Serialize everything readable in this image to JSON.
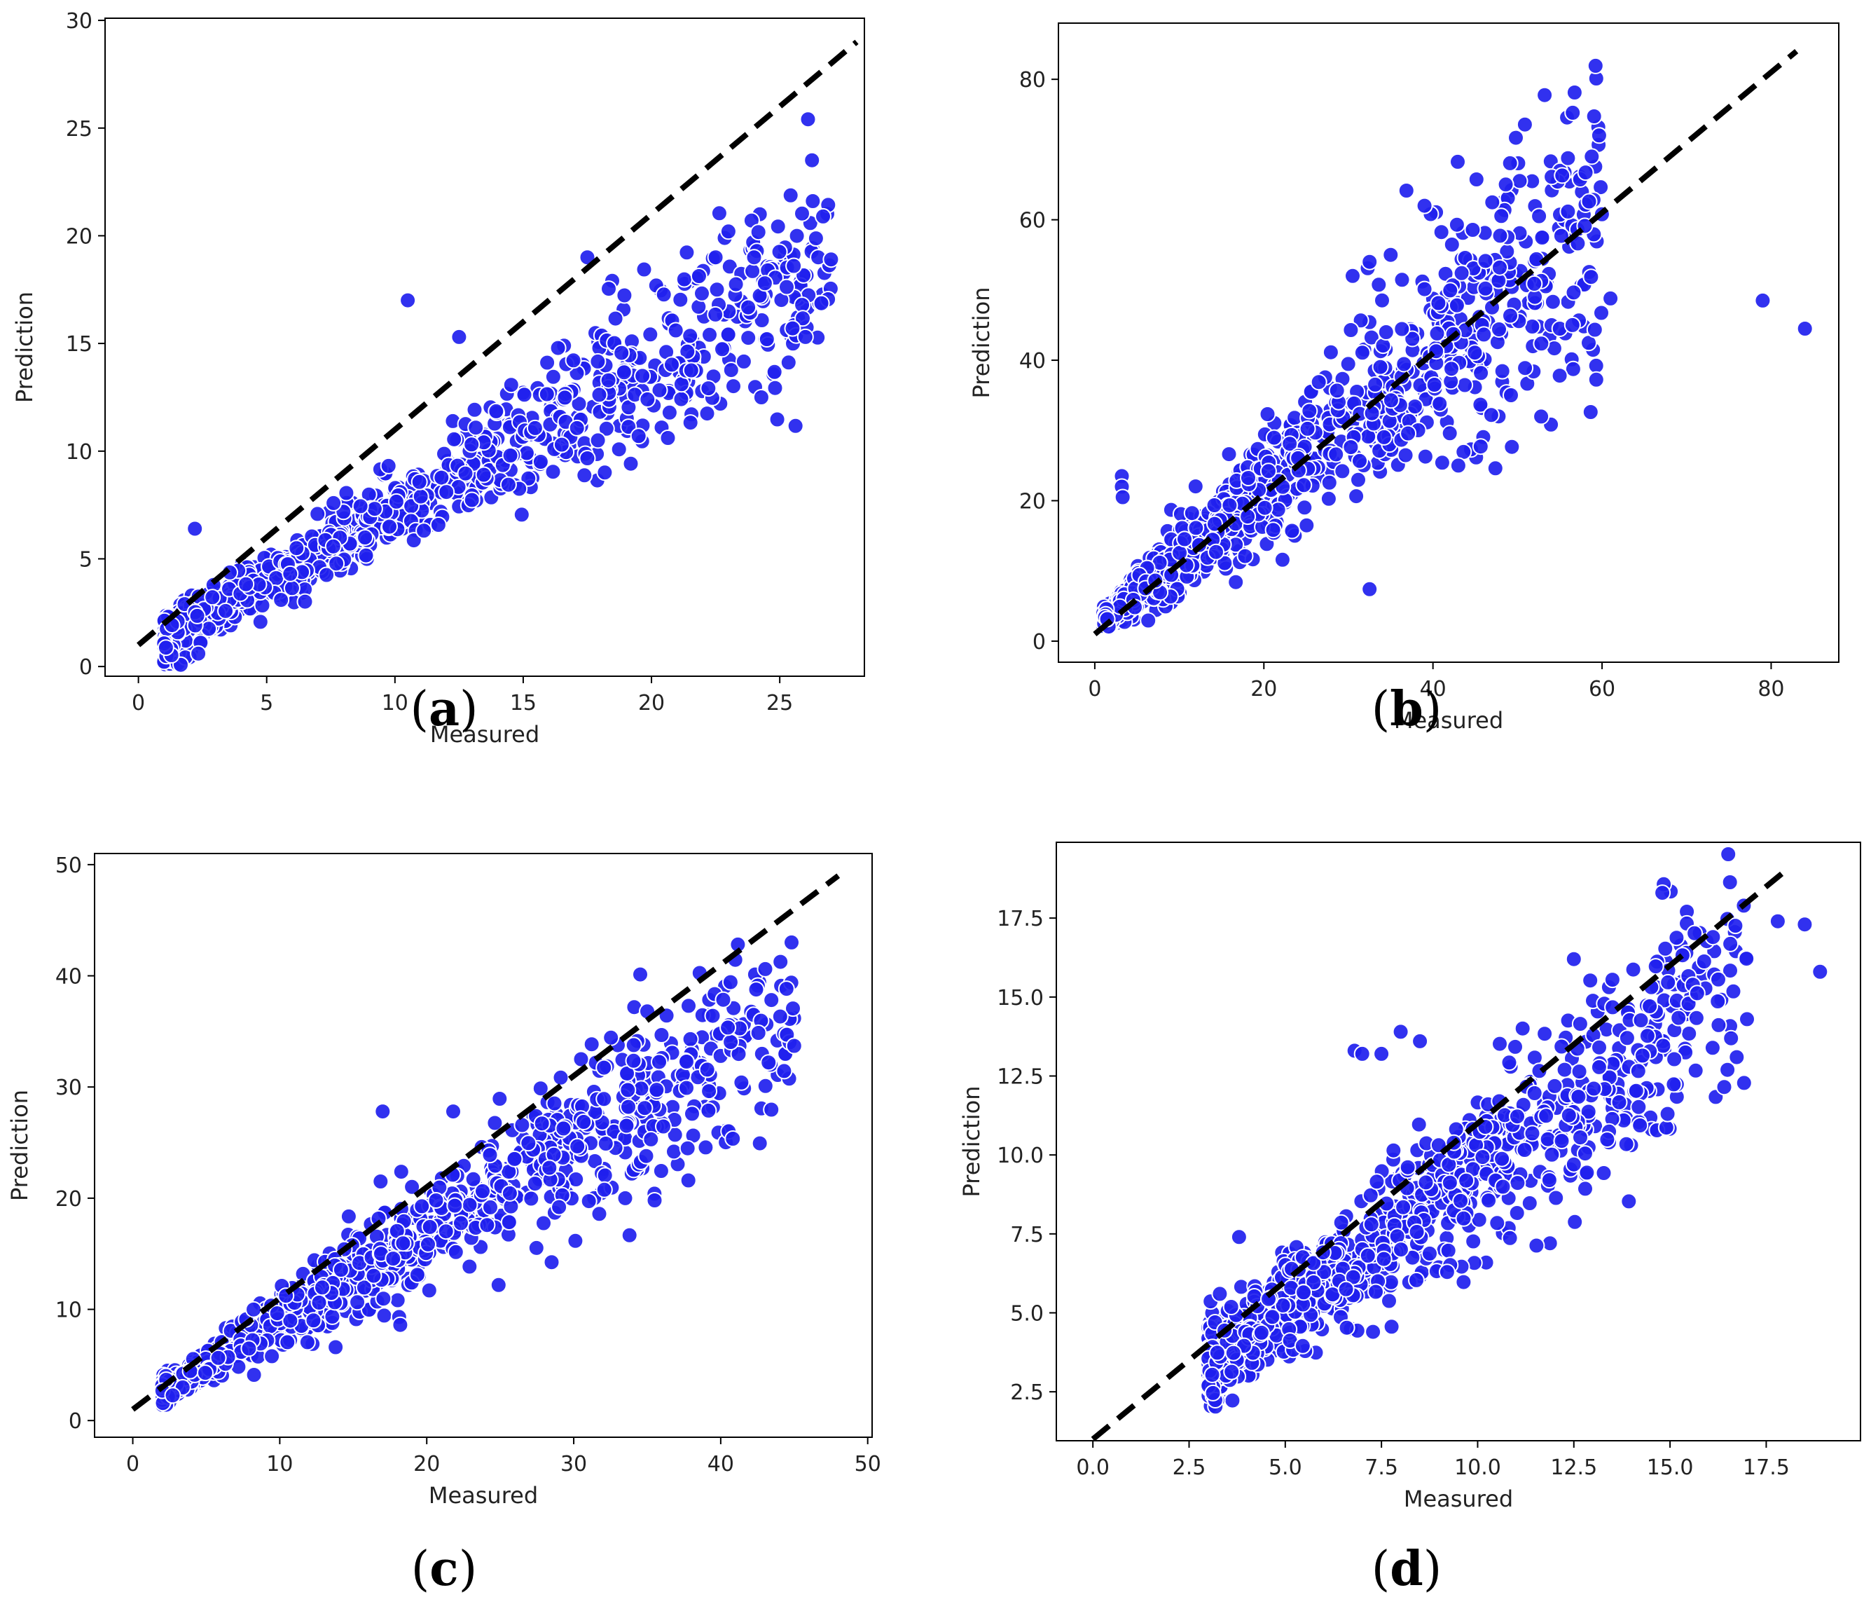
{
  "figure": {
    "colors": {
      "point": "#1f1fee",
      "point_edge": "#ffffff",
      "line": "#000000",
      "frame": "#000000"
    }
  },
  "chart_data": [
    {
      "type": "scatter",
      "panel_caption": "a",
      "title": "",
      "xlabel": "Measured",
      "ylabel": "Prediction",
      "xlim": [
        -1.3,
        28.3
      ],
      "ylim": [
        -0.45,
        30.1
      ],
      "xticks": [
        0,
        5,
        10,
        15,
        20,
        25
      ],
      "xtick_labels": [
        "0",
        "5",
        "10",
        "15",
        "20",
        "25"
      ],
      "yticks": [
        0,
        5,
        10,
        15,
        20,
        25,
        30
      ],
      "ytick_labels": [
        "0",
        "5",
        "10",
        "15",
        "20",
        "25",
        "30"
      ],
      "reference_line": {
        "style": "dashed",
        "x": [
          0,
          28
        ],
        "y": [
          1,
          29
        ]
      },
      "cloud": {
        "x_min": 1,
        "x_max": 27,
        "slope": 0.68,
        "intercept": 0.5,
        "spread": 0.14
      },
      "points": [
        [
          10.5,
          17
        ],
        [
          19.5,
          10.7
        ],
        [
          2.2,
          6.4
        ],
        [
          23,
          20.2
        ],
        [
          22.5,
          19
        ],
        [
          24,
          19
        ],
        [
          26.5,
          19
        ],
        [
          27,
          18.9
        ],
        [
          24.5,
          15.2
        ],
        [
          26,
          15.3
        ],
        [
          25.5,
          15.7
        ],
        [
          17.5,
          19
        ],
        [
          14.5,
          9.8
        ],
        [
          16.5,
          10.3
        ],
        [
          12.5,
          15.3
        ]
      ]
    },
    {
      "type": "scatter",
      "panel_caption": "b",
      "title": "",
      "xlabel": "Measured",
      "ylabel": "Prediction",
      "xlim": [
        -4.3,
        88
      ],
      "ylim": [
        -3,
        88
      ],
      "xticks": [
        0,
        20,
        40,
        60,
        80
      ],
      "xtick_labels": [
        "0",
        "20",
        "40",
        "60",
        "80"
      ],
      "yticks": [
        0,
        20,
        40,
        60,
        80
      ],
      "ytick_labels": [
        "0",
        "20",
        "40",
        "60",
        "80"
      ],
      "reference_line": {
        "style": "dashed",
        "x": [
          0,
          83
        ],
        "y": [
          1,
          84
        ]
      },
      "cloud": {
        "x_min": 1,
        "x_max": 60,
        "slope": 0.97,
        "intercept": 2,
        "spread": 0.2
      },
      "points": [
        [
          79,
          48.5
        ],
        [
          84,
          44.5
        ],
        [
          39,
          62
        ],
        [
          32.5,
          7.4
        ],
        [
          43,
          25
        ],
        [
          35,
          55
        ],
        [
          32.5,
          54
        ],
        [
          30.5,
          52
        ],
        [
          3.2,
          23.5
        ],
        [
          3.2,
          22
        ],
        [
          3.3,
          20.5
        ],
        [
          61,
          48.8
        ],
        [
          55,
          44.5
        ],
        [
          56.5,
          45
        ]
      ]
    },
    {
      "type": "scatter",
      "panel_caption": "c",
      "title": "",
      "xlabel": "Measured",
      "ylabel": "Prediction",
      "xlim": [
        -2.6,
        50.3
      ],
      "ylim": [
        -1.5,
        51
      ],
      "xticks": [
        0,
        10,
        20,
        30,
        40,
        50
      ],
      "xtick_labels": [
        "0",
        "10",
        "20",
        "30",
        "40",
        "50"
      ],
      "yticks": [
        0,
        10,
        20,
        30,
        40,
        50
      ],
      "ytick_labels": [
        "0",
        "10",
        "20",
        "30",
        "40",
        "50"
      ],
      "reference_line": {
        "style": "dashed",
        "x": [
          0,
          48
        ],
        "y": [
          1,
          49
        ]
      },
      "cloud": {
        "x_min": 2,
        "x_max": 45,
        "slope": 0.8,
        "intercept": 1,
        "spread": 0.14
      },
      "points": [
        [
          35,
          36.8
        ],
        [
          17,
          27.8
        ],
        [
          21.8,
          27.8
        ],
        [
          30.5,
          32.5
        ],
        [
          29,
          19.2
        ],
        [
          33.5,
          20
        ],
        [
          35.5,
          19.8
        ],
        [
          37.8,
          21.6
        ],
        [
          44.5,
          34.7
        ],
        [
          45,
          33.7
        ],
        [
          18.2,
          8.6
        ],
        [
          13.8,
          6.6
        ]
      ]
    },
    {
      "type": "scatter",
      "panel_caption": "d",
      "title": "",
      "xlabel": "Measured",
      "ylabel": "Prediction",
      "xlim": [
        -0.95,
        19.95
      ],
      "ylim": [
        0.95,
        19.9
      ],
      "xticks": [
        0,
        2.5,
        5,
        7.5,
        10,
        12.5,
        15,
        17.5
      ],
      "xtick_labels": [
        "0.0",
        "2.5",
        "5.0",
        "7.5",
        "10.0",
        "12.5",
        "15.0",
        "17.5"
      ],
      "yticks": [
        2.5,
        5,
        7.5,
        10,
        12.5,
        15,
        17.5
      ],
      "ytick_labels": [
        "2.5",
        "5.0",
        "7.5",
        "10.0",
        "12.5",
        "15.0",
        "17.5"
      ],
      "reference_line": {
        "style": "dashed",
        "x": [
          0,
          18
        ],
        "y": [
          1,
          19
        ]
      },
      "cloud": {
        "x_min": 3,
        "x_max": 17,
        "slope": 0.9,
        "intercept": 0.6,
        "spread": 0.14
      },
      "points": [
        [
          14.8,
          18.3
        ],
        [
          12.5,
          16.2
        ],
        [
          6.8,
          13.3
        ],
        [
          7,
          13.2
        ],
        [
          7.5,
          13.2
        ],
        [
          8,
          13.9
        ],
        [
          8.5,
          13.6
        ],
        [
          18.9,
          15.8
        ],
        [
          17.8,
          17.4
        ],
        [
          18.5,
          17.3
        ],
        [
          17,
          14.3
        ],
        [
          12.5,
          9.7
        ],
        [
          3.3,
          5.6
        ],
        [
          3.8,
          7.4
        ]
      ]
    }
  ]
}
